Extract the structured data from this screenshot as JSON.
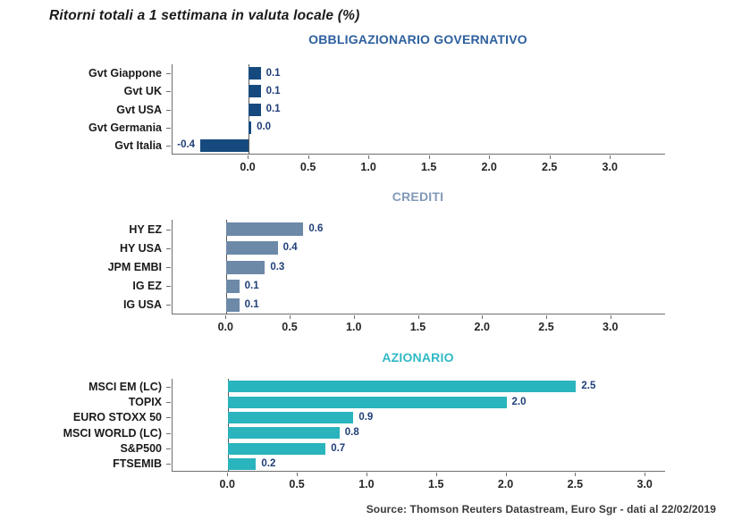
{
  "page": {
    "title": "Ritorni totali a 1 settimana in valuta locale (%)",
    "source": "Source: Thomson Reuters Datastream, Euro Sgr - dati al 22/02/2019"
  },
  "colors": {
    "gov_bar": "#164a7e",
    "credit_bar": "#6d89a8",
    "equity_bar": "#2ab4bd",
    "gov_title": "#2d5f9e",
    "credit_title": "#8299b8",
    "equity_title": "#30b9c6",
    "value_label": "#1f3e77",
    "axis": "#6e6e6e"
  },
  "chart_data": [
    {
      "type": "bar",
      "orientation": "horizontal",
      "title": "OBBLIGAZIONARIO GOVERNATIVO",
      "title_color": "#2d5f9e",
      "bar_color": "#164a7e",
      "categories": [
        "Gvt Giappone",
        "Gvt UK",
        "Gvt USA",
        "Gvt Germania",
        "Gvt Italia"
      ],
      "values": [
        0.1,
        0.1,
        0.1,
        0.0,
        -0.4
      ],
      "value_labels": [
        "0.1",
        "0.1",
        "0.1",
        "0.0",
        "-0.4"
      ],
      "xlim": [
        -0.63,
        3.45
      ],
      "xticks": [
        0,
        0.5,
        1,
        1.5,
        2,
        2.5,
        3
      ],
      "xtick_labels": [
        "0.0",
        "0.5",
        "1.0",
        "1.5",
        "2.0",
        "2.5",
        "3.0"
      ],
      "grid": false,
      "legend": false
    },
    {
      "type": "bar",
      "orientation": "horizontal",
      "title": "CREDITI",
      "title_color": "#8299b8",
      "bar_color": "#6d89a8",
      "categories": [
        "HY EZ",
        "HY USA",
        "JPM EMBI",
        "IG EZ",
        "IG USA"
      ],
      "values": [
        0.6,
        0.4,
        0.3,
        0.1,
        0.1
      ],
      "value_labels": [
        "0.6",
        "0.4",
        "0.3",
        "0.1",
        "0.1"
      ],
      "xlim": [
        -0.42,
        3.42
      ],
      "xticks": [
        0,
        0.5,
        1,
        1.5,
        2,
        2.5,
        3
      ],
      "xtick_labels": [
        "0.0",
        "0.5",
        "1.0",
        "1.5",
        "2.0",
        "2.5",
        "3.0"
      ],
      "grid": false,
      "legend": false
    },
    {
      "type": "bar",
      "orientation": "horizontal",
      "title": "AZIONARIO",
      "title_color": "#30b9c6",
      "bar_color": "#2ab4bd",
      "categories": [
        "MSCI EM (LC)",
        "TOPIX",
        "EURO STOXX 50",
        "MSCI WORLD (LC)",
        "S&P500",
        "FTSEMIB"
      ],
      "values": [
        2.5,
        2.0,
        0.9,
        0.8,
        0.7,
        0.2
      ],
      "value_labels": [
        "2.5",
        "2.0",
        "0.9",
        "0.8",
        "0.7",
        "0.2"
      ],
      "xlim": [
        -0.4,
        3.14
      ],
      "xticks": [
        0,
        0.5,
        1,
        1.5,
        2,
        2.5,
        3
      ],
      "xtick_labels": [
        "0.0",
        "0.5",
        "1.0",
        "1.5",
        "2.0",
        "2.5",
        "3.0"
      ],
      "grid": false,
      "legend": false
    }
  ]
}
